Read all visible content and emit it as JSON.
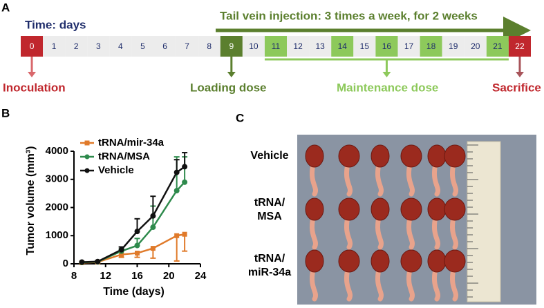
{
  "panel_a": {
    "label": "A",
    "time_label": "Time: days",
    "injection_label": "Tail vein injection: 3 times a week, for 2 weeks",
    "days": [
      {
        "day": 0,
        "color": "#c0272d"
      },
      {
        "day": 1,
        "color": "#ececec"
      },
      {
        "day": 2,
        "color": "#ececec"
      },
      {
        "day": 3,
        "color": "#ececec"
      },
      {
        "day": 4,
        "color": "#ececec"
      },
      {
        "day": 5,
        "color": "#ececec"
      },
      {
        "day": 6,
        "color": "#ececec"
      },
      {
        "day": 7,
        "color": "#ececec"
      },
      {
        "day": 8,
        "color": "#ececec"
      },
      {
        "day": 9,
        "color": "#5b7f2e"
      },
      {
        "day": 10,
        "color": "#ececec"
      },
      {
        "day": 11,
        "color": "#8dc95b"
      },
      {
        "day": 12,
        "color": "#ececec"
      },
      {
        "day": 13,
        "color": "#ececec"
      },
      {
        "day": 14,
        "color": "#8dc95b"
      },
      {
        "day": 15,
        "color": "#ececec"
      },
      {
        "day": 16,
        "color": "#8dc95b"
      },
      {
        "day": 17,
        "color": "#ececec"
      },
      {
        "day": 18,
        "color": "#8dc95b"
      },
      {
        "day": 19,
        "color": "#ececec"
      },
      {
        "day": 20,
        "color": "#ececec"
      },
      {
        "day": 21,
        "color": "#8dc95b"
      },
      {
        "day": 22,
        "color": "#c0272d"
      }
    ],
    "events": {
      "inoculation": "Inoculation",
      "loading": "Loading dose",
      "maintenance": "Maintenance dose",
      "sacrifice": "Sacrifice"
    }
  },
  "panel_b_label": "B",
  "chart_data": {
    "type": "line",
    "xlabel": "Time (days)",
    "ylabel": "Tumor volume (mm³)",
    "x": [
      9,
      11,
      14,
      16,
      18,
      21,
      22
    ],
    "xlim": [
      8,
      24
    ],
    "xticks": [
      8,
      12,
      16,
      20,
      24
    ],
    "ylim": [
      0,
      4000
    ],
    "yticks": [
      0,
      1000,
      2000,
      3000,
      4000
    ],
    "series": [
      {
        "name": "tRNA/mir-34a",
        "color": "#e07a2a",
        "marker": "square",
        "error_side": "down",
        "values": [
          40,
          60,
          330,
          380,
          550,
          1000,
          1050
        ],
        "errors": [
          20,
          30,
          100,
          150,
          350,
          900,
          600
        ]
      },
      {
        "name": "tRNA/MSA",
        "color": "#2e8a4c",
        "marker": "circle",
        "error_side": "up",
        "values": [
          50,
          70,
          450,
          650,
          1300,
          2600,
          2900
        ],
        "errors": [
          20,
          30,
          80,
          250,
          750,
          1200,
          900
        ]
      },
      {
        "name": "Vehicle",
        "color": "#111111",
        "marker": "circle",
        "error_side": "up",
        "values": [
          60,
          80,
          500,
          1150,
          1700,
          3250,
          3450
        ],
        "errors": [
          20,
          30,
          100,
          450,
          700,
          450,
          500
        ]
      }
    ]
  },
  "panel_c": {
    "label": "C",
    "rows": [
      [
        "Vehicle"
      ],
      [
        "tRNA/",
        "MSA"
      ],
      [
        "tRNA/",
        "miR-34a"
      ]
    ]
  }
}
